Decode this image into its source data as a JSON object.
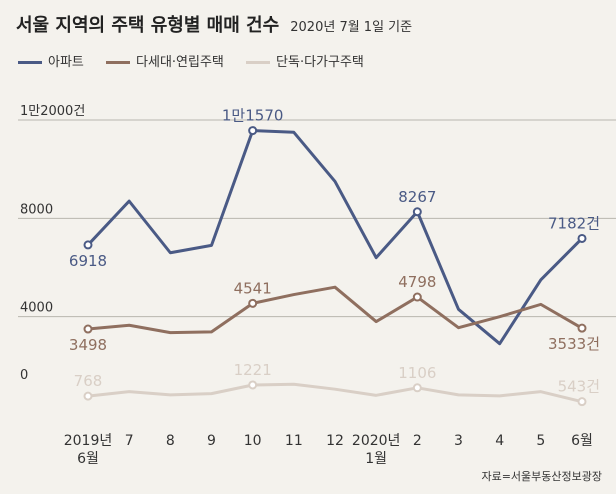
{
  "title": "서울 지역의 주택 유형별 매매 건수",
  "subtitle": "2020년 7월 1일 기준",
  "source": "자료=서울부동산정보광장",
  "colors": {
    "apartment": "#4a5a85",
    "villa": "#8f6f5f",
    "detached": "#d9cfc6",
    "grid": "#b9b6ae"
  },
  "chart_data": {
    "type": "line",
    "categories": [
      "2019년 6월",
      "7",
      "8",
      "9",
      "10",
      "11",
      "12",
      "2020년 1월",
      "2",
      "3",
      "4",
      "5",
      "6월"
    ],
    "x_tick_labels": [
      [
        "2019년",
        "6월"
      ],
      [
        "7"
      ],
      [
        "8"
      ],
      [
        "9"
      ],
      [
        "10"
      ],
      [
        "11"
      ],
      [
        "12"
      ],
      [
        "2020년",
        "1월"
      ],
      [
        "2"
      ],
      [
        "3"
      ],
      [
        "4"
      ],
      [
        "5"
      ],
      [
        "6월"
      ]
    ],
    "y_ticks": [
      {
        "value": 0,
        "label": "0"
      },
      {
        "value": 4000,
        "label": "4000"
      },
      {
        "value": 8000,
        "label": "8000"
      },
      {
        "value": 12000,
        "label": "1만2000건"
      }
    ],
    "ylim": [
      0,
      12000
    ],
    "series": [
      {
        "name": "아파트",
        "color": "#4a5a85",
        "values": [
          6918,
          8700,
          6600,
          6900,
          11570,
          11500,
          9500,
          6400,
          8267,
          4300,
          2900,
          5500,
          7182
        ]
      },
      {
        "name": "다세대·연립주택",
        "color": "#8f6f5f",
        "values": [
          3498,
          3650,
          3350,
          3380,
          4541,
          4900,
          5200,
          3800,
          4798,
          3550,
          4000,
          4500,
          3533
        ]
      },
      {
        "name": "단독·다가구주택",
        "color": "#d9cfc6",
        "values": [
          768,
          950,
          820,
          870,
          1221,
          1250,
          1050,
          800,
          1106,
          820,
          780,
          950,
          543
        ]
      }
    ],
    "annotations": [
      {
        "series": 0,
        "index": 0,
        "label": "6918",
        "pos": "below"
      },
      {
        "series": 0,
        "index": 4,
        "label": "1만1570",
        "pos": "above"
      },
      {
        "series": 0,
        "index": 8,
        "label": "8267",
        "pos": "above"
      },
      {
        "series": 0,
        "index": 12,
        "label": "7182건",
        "pos": "above"
      },
      {
        "series": 1,
        "index": 0,
        "label": "3498",
        "pos": "below"
      },
      {
        "series": 1,
        "index": 4,
        "label": "4541",
        "pos": "above"
      },
      {
        "series": 1,
        "index": 8,
        "label": "4798",
        "pos": "above"
      },
      {
        "series": 1,
        "index": 12,
        "label": "3533건",
        "pos": "below"
      },
      {
        "series": 2,
        "index": 0,
        "label": "768",
        "pos": "above"
      },
      {
        "series": 2,
        "index": 4,
        "label": "1221",
        "pos": "above"
      },
      {
        "series": 2,
        "index": 8,
        "label": "1106",
        "pos": "above"
      },
      {
        "series": 2,
        "index": 12,
        "label": "543건",
        "pos": "above"
      }
    ]
  }
}
